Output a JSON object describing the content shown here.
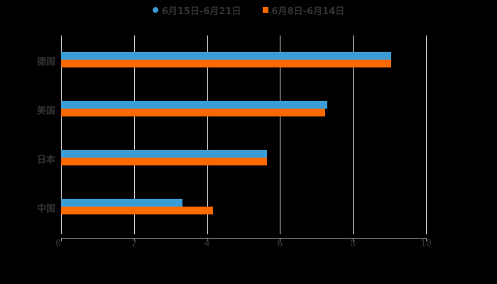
{
  "legend": [
    {
      "label": "6月15日-6月21日",
      "color": "#3a9bd5",
      "shape": "circle"
    },
    {
      "label": "6月8日-6月14日",
      "color": "#ff6a00",
      "shape": "square"
    }
  ],
  "chart_data": {
    "type": "bar",
    "orientation": "horizontal",
    "title": "",
    "xlabel": "",
    "ylabel": "",
    "categories": [
      "德国",
      "美国",
      "日本",
      "中国"
    ],
    "series": [
      {
        "name": "6月15日-6月21日",
        "color": "#3a9bd5",
        "values": [
          9.05,
          7.3,
          5.64,
          3.33
        ]
      },
      {
        "name": "6月8日-6月14日",
        "color": "#ff6a00",
        "values": [
          9.05,
          7.24,
          5.64,
          4.16
        ]
      }
    ],
    "xlim": [
      0,
      10
    ],
    "xticks": [
      "0",
      "2",
      "4",
      "6",
      "8",
      "10"
    ],
    "grid": "vertical",
    "legend_position": "top"
  }
}
